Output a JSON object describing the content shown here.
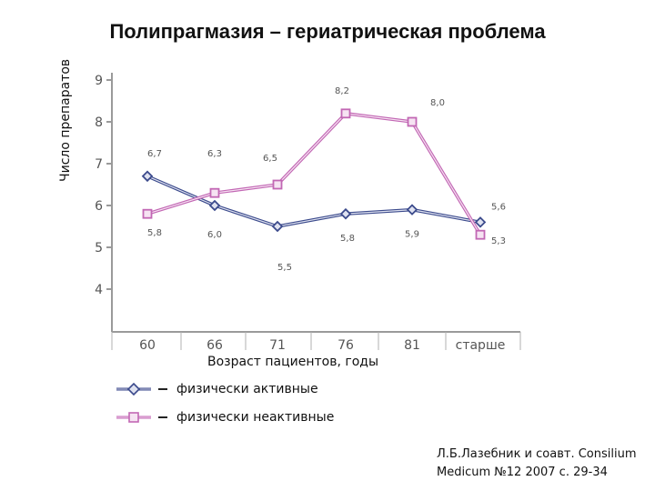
{
  "title": "Полипрагмазия – гериатрическая проблема",
  "citation_line1": "Л.Б.Лазебник и соавт. Consilium",
  "citation_line2": "Medicum №12 2007 с. 29-34",
  "chart_data": {
    "type": "line",
    "title": "Полипрагмазия – гериатрическая проблема",
    "xlabel": "Возраст пациентов, годы",
    "ylabel": "Число препаратов",
    "categories": [
      "60",
      "66",
      "71",
      "76",
      "81",
      "старше"
    ],
    "ylim": [
      3,
      9
    ],
    "yticks": [
      4,
      5,
      6,
      7,
      8,
      9
    ],
    "grid": false,
    "legend_position": "bottom-left",
    "series": [
      {
        "name": "физически активные",
        "values": [
          6.7,
          6.0,
          5.5,
          5.8,
          5.9,
          5.6
        ],
        "labels": [
          "6,7",
          "6,0",
          "5,5",
          "5,8",
          "5,9",
          "5,6"
        ],
        "color": "#3b4a8c",
        "marker": "diamond"
      },
      {
        "name": "физически неактивные",
        "values": [
          5.8,
          6.3,
          6.5,
          8.2,
          8.0,
          5.3
        ],
        "labels": [
          "5,8",
          "6,3",
          "6,5",
          "8,2",
          "8,0",
          "5,3"
        ],
        "color": "#c267b4",
        "marker": "square"
      }
    ]
  }
}
